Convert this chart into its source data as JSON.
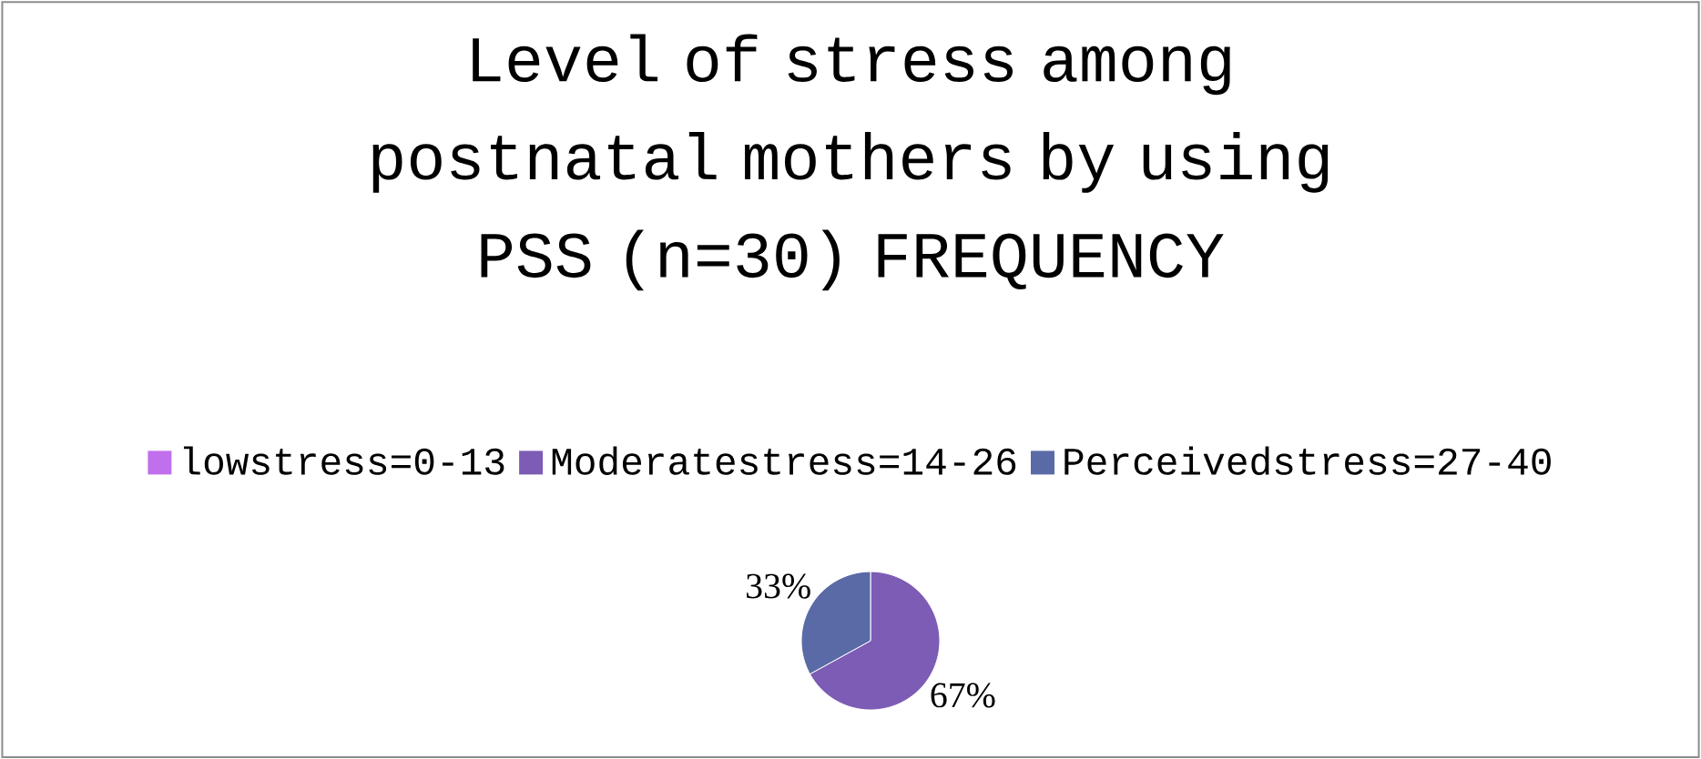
{
  "chart_data": {
    "type": "pie",
    "title": "Level of stress among postnatal mothers by using PSS (n=30) FREQUENCY",
    "categories": [
      "lowstress=0-13",
      "Moderatestress=14-26",
      "Perceivedstress=27-40"
    ],
    "values": [
      0,
      67,
      33
    ],
    "value_labels": [
      null,
      "67%",
      "33%"
    ],
    "colors": [
      "#c070ec",
      "#7c5cb4",
      "#5a6aa6"
    ],
    "legend": "top"
  }
}
